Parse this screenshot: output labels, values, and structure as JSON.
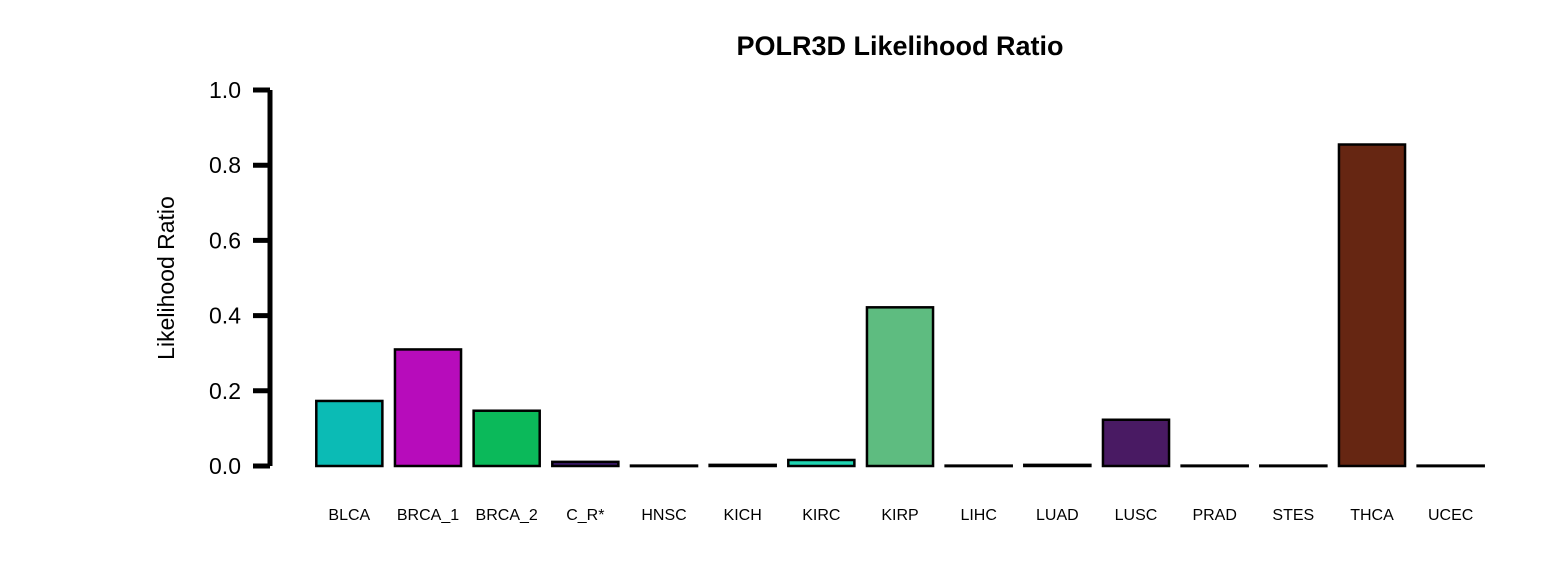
{
  "chart_data": {
    "type": "bar",
    "title": "POLR3D Likelihood Ratio",
    "xlabel": "",
    "ylabel": "Likelihood Ratio",
    "ylim": [
      0,
      1.0
    ],
    "yticks": [
      "0.0",
      "0.2",
      "0.4",
      "0.6",
      "0.8",
      "1.0"
    ],
    "grid": false,
    "legend": "none",
    "categories": [
      "BLCA",
      "BRCA_1",
      "BRCA_2",
      "C_R*",
      "HNSC",
      "KICH",
      "KIRC",
      "KIRP",
      "LIHC",
      "LUAD",
      "LUSC",
      "PRAD",
      "STES",
      "THCA",
      "UCEC"
    ],
    "values": [
      0.173,
      0.31,
      0.147,
      0.011,
      0.001,
      0.003,
      0.016,
      0.422,
      0.001,
      0.003,
      0.123,
      0.001,
      0.001,
      0.855,
      0.001
    ],
    "colors": [
      "#0bbbb5",
      "#b70cbb",
      "#0bb95a",
      "#3d1a6e",
      "#333333",
      "#333333",
      "#1fd6b3",
      "#5ebc80",
      "#333333",
      "#333333",
      "#491a63",
      "#333333",
      "#333333",
      "#662612",
      "#333333"
    ]
  }
}
